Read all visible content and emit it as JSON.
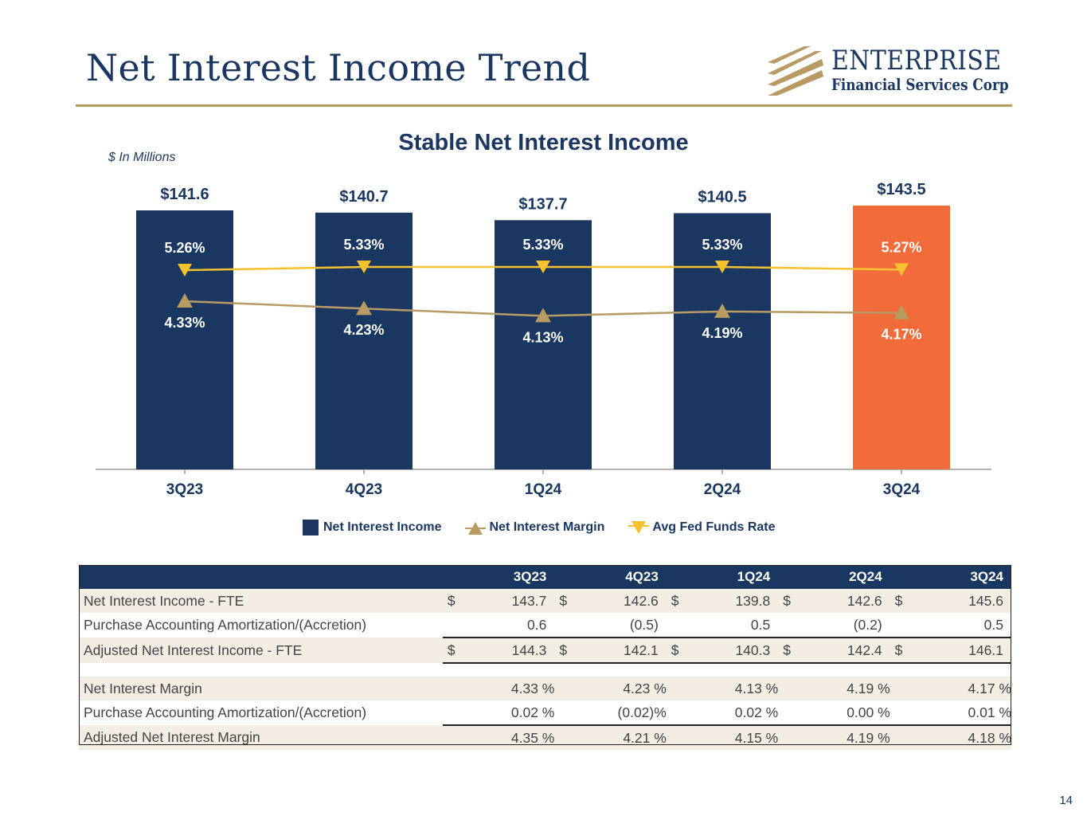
{
  "header": {
    "title": "Net Interest Income Trend"
  },
  "logo": {
    "name": "ENTERPRISE",
    "subtitle": "Financial Services Corp"
  },
  "colors": {
    "navy": "#1a3761",
    "orange": "#f26b3a",
    "gold": "#b89a63",
    "yellow": "#f5c12e"
  },
  "chart_data": {
    "type": "bar",
    "title": "Stable Net Interest Income",
    "units_note": "$ In Millions",
    "categories": [
      "3Q23",
      "4Q23",
      "1Q24",
      "2Q24",
      "3Q24"
    ],
    "ylim": [
      0,
      150
    ],
    "series": [
      {
        "name": "Net Interest Income",
        "kind": "bar",
        "values": [
          141.6,
          140.7,
          137.7,
          140.5,
          143.5
        ],
        "labels": [
          "$141.6",
          "$140.7",
          "$137.7",
          "$140.5",
          "$143.5"
        ]
      },
      {
        "name": "Net Interest Margin",
        "kind": "line",
        "marker": "triangle-up",
        "values": [
          4.33,
          4.23,
          4.13,
          4.19,
          4.17
        ],
        "labels": [
          "4.33%",
          "4.23%",
          "4.13%",
          "4.19%",
          "4.17%"
        ]
      },
      {
        "name": "Avg Fed Funds Rate",
        "kind": "line",
        "marker": "triangle-down",
        "values": [
          5.26,
          5.33,
          5.33,
          5.33,
          5.27
        ],
        "labels": [
          "5.26%",
          "5.33%",
          "5.33%",
          "5.33%",
          "5.27%"
        ]
      }
    ],
    "highlight_index": 4
  },
  "table": {
    "columns": [
      "3Q23",
      "4Q23",
      "1Q24",
      "2Q24",
      "3Q24"
    ],
    "rows": [
      {
        "label": "Net Interest Income - FTE",
        "dollar": "$",
        "values": [
          "143.7",
          "142.6",
          "139.8",
          "142.6",
          "145.6"
        ]
      },
      {
        "label": "Purchase Accounting Amortization/(Accretion)",
        "dollar": "",
        "values": [
          "0.6",
          "(0.5)",
          "0.5",
          "(0.2)",
          "0.5"
        ]
      },
      {
        "label": "Adjusted Net Interest Income - FTE",
        "dollar": "$",
        "values": [
          "144.3",
          "142.1",
          "140.3",
          "142.4",
          "146.1"
        ]
      },
      {
        "label": "Net Interest Margin",
        "values": [
          "4.33 %",
          "4.23 %",
          "4.13 %",
          "4.19 %",
          "4.17 %"
        ]
      },
      {
        "label": "Purchase Accounting Amortization/(Accretion)",
        "values": [
          "0.02 %",
          "(0.02)%",
          "0.02 %",
          "0.00 %",
          "0.01 %"
        ]
      },
      {
        "label": "Adjusted Net Interest Margin",
        "values": [
          "4.35 %",
          "4.21 %",
          "4.15 %",
          "4.19 %",
          "4.18 %"
        ]
      }
    ]
  },
  "footer": {
    "page_number": "14"
  }
}
